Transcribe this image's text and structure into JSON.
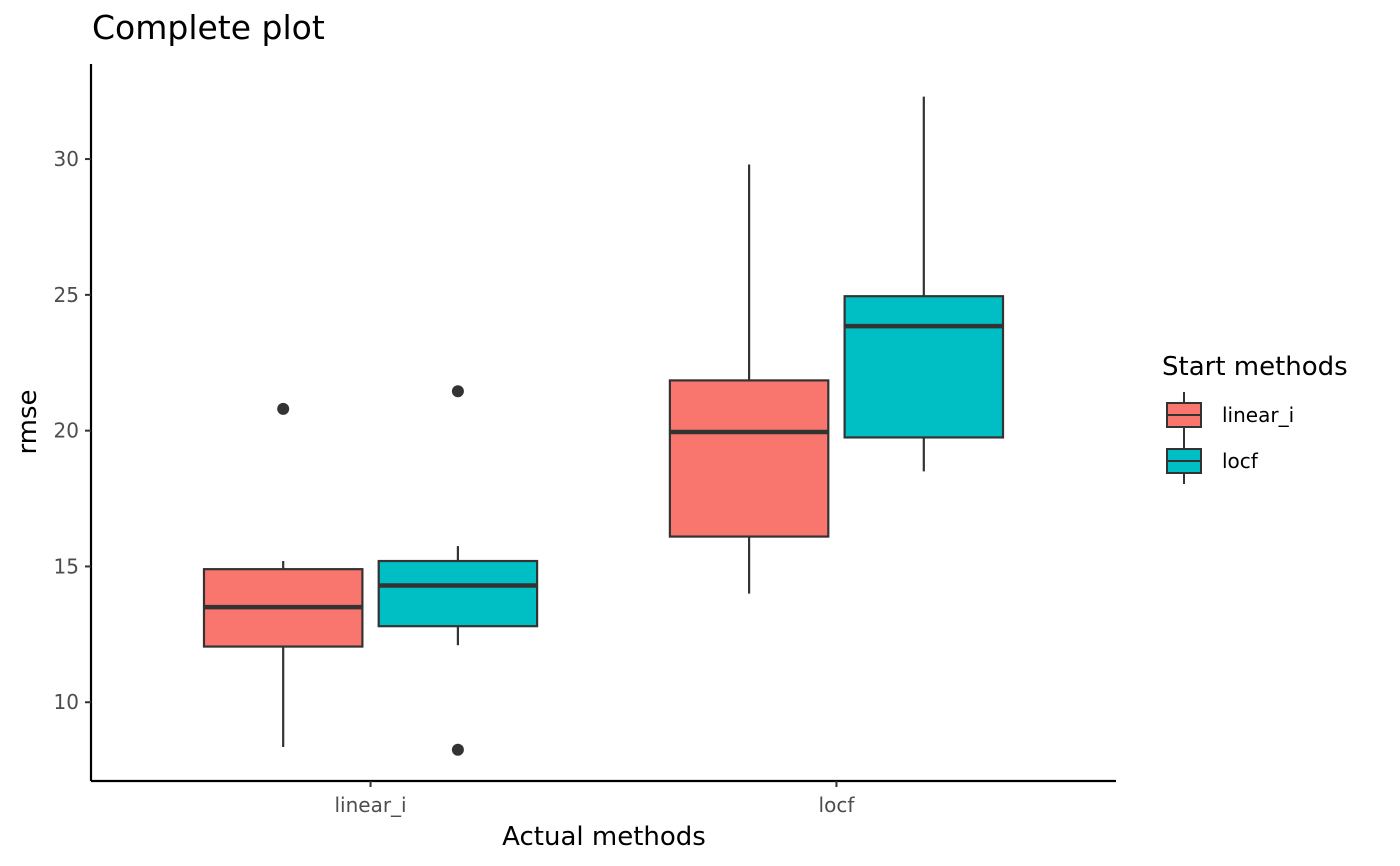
{
  "chart_data": {
    "type": "boxplot",
    "title": "Complete plot",
    "xlabel": "Actual methods",
    "ylabel": "rmse",
    "categories": [
      "linear_i",
      "locf"
    ],
    "ylim": [
      7.1,
      33.5
    ],
    "yticks": [
      10,
      15,
      20,
      25,
      30
    ],
    "legend": {
      "title": "Start methods",
      "position": "right"
    },
    "series": [
      {
        "name": "linear_i",
        "color": "#F8766D",
        "boxes": [
          {
            "category": "linear_i",
            "lower_whisker": 8.35,
            "q1": 12.05,
            "median": 13.5,
            "q3": 14.9,
            "upper_whisker": 15.2,
            "outliers": [
              20.8
            ]
          },
          {
            "category": "locf",
            "lower_whisker": 14.0,
            "q1": 16.1,
            "median": 19.95,
            "q3": 21.85,
            "upper_whisker": 29.8,
            "outliers": []
          }
        ]
      },
      {
        "name": "locf",
        "color": "#00BFC4",
        "boxes": [
          {
            "category": "linear_i",
            "lower_whisker": 12.1,
            "q1": 12.8,
            "median": 14.3,
            "q3": 15.2,
            "upper_whisker": 15.75,
            "outliers": [
              21.45,
              8.25
            ]
          },
          {
            "category": "locf",
            "lower_whisker": 18.5,
            "q1": 19.75,
            "median": 23.85,
            "q3": 24.95,
            "upper_whisker": 32.3,
            "outliers": []
          }
        ]
      }
    ]
  }
}
